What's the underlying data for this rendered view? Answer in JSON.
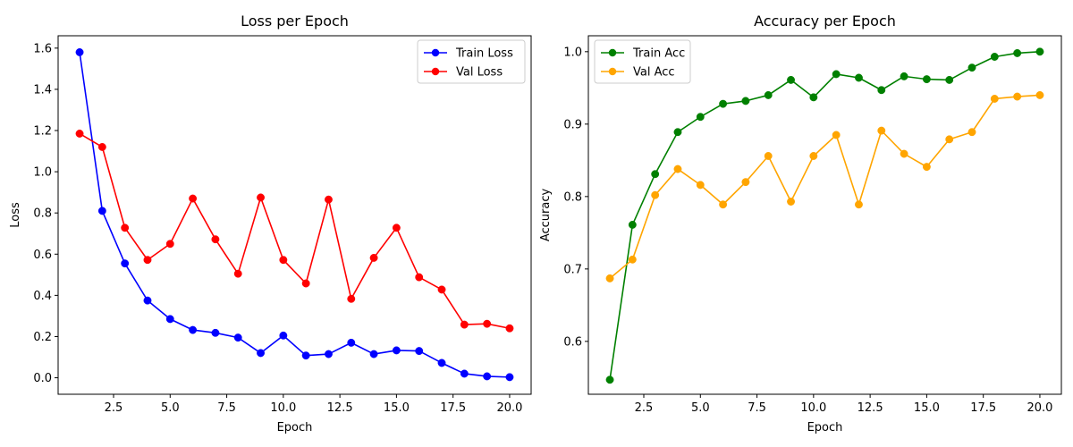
{
  "chart_data": [
    {
      "type": "line",
      "title": "Loss per Epoch",
      "xlabel": "Epoch",
      "ylabel": "Loss",
      "xlim": [
        0.05,
        20.95
      ],
      "ylim": [
        -0.08,
        1.66
      ],
      "xticks": [
        2.5,
        5.0,
        7.5,
        10.0,
        12.5,
        15.0,
        17.5,
        20.0
      ],
      "xtick_labels": [
        "2.5",
        "5.0",
        "7.5",
        "10.0",
        "12.5",
        "15.0",
        "17.5",
        "20.0"
      ],
      "yticks": [
        0.0,
        0.2,
        0.4,
        0.6,
        0.8,
        1.0,
        1.2,
        1.4,
        1.6
      ],
      "ytick_labels": [
        "0.0",
        "0.2",
        "0.4",
        "0.6",
        "0.8",
        "1.0",
        "1.2",
        "1.4",
        "1.6"
      ],
      "grid": false,
      "legend_position": "top-right",
      "x": [
        1,
        2,
        3,
        4,
        5,
        6,
        7,
        8,
        9,
        10,
        11,
        12,
        13,
        14,
        15,
        16,
        17,
        18,
        19,
        20
      ],
      "series": [
        {
          "name": "Train Loss",
          "color": "#0000ff",
          "values": [
            1.58,
            0.81,
            0.555,
            0.375,
            0.285,
            0.232,
            0.218,
            0.195,
            0.12,
            0.205,
            0.108,
            0.115,
            0.17,
            0.115,
            0.133,
            0.13,
            0.072,
            0.02,
            0.007,
            0.003
          ]
        },
        {
          "name": "Val Loss",
          "color": "#ff0000",
          "values": [
            1.185,
            1.12,
            0.728,
            0.572,
            0.65,
            0.87,
            0.672,
            0.505,
            0.875,
            0.572,
            0.458,
            0.865,
            0.383,
            0.582,
            0.728,
            0.488,
            0.428,
            0.258,
            0.262,
            0.24
          ]
        }
      ]
    },
    {
      "type": "line",
      "title": "Accuracy per Epoch",
      "xlabel": "Epoch",
      "ylabel": "Accuracy",
      "xlim": [
        0.05,
        20.95
      ],
      "ylim": [
        0.527,
        1.022
      ],
      "xticks": [
        2.5,
        5.0,
        7.5,
        10.0,
        12.5,
        15.0,
        17.5,
        20.0
      ],
      "xtick_labels": [
        "2.5",
        "5.0",
        "7.5",
        "10.0",
        "12.5",
        "15.0",
        "17.5",
        "20.0"
      ],
      "yticks": [
        0.6,
        0.7,
        0.8,
        0.9,
        1.0
      ],
      "ytick_labels": [
        "0.6",
        "0.7",
        "0.8",
        "0.9",
        "1.0"
      ],
      "grid": false,
      "legend_position": "top-left",
      "x": [
        1,
        2,
        3,
        4,
        5,
        6,
        7,
        8,
        9,
        10,
        11,
        12,
        13,
        14,
        15,
        16,
        17,
        18,
        19,
        20
      ],
      "series": [
        {
          "name": "Train Acc",
          "color": "#008000",
          "values": [
            0.547,
            0.761,
            0.831,
            0.889,
            0.91,
            0.928,
            0.932,
            0.94,
            0.961,
            0.937,
            0.969,
            0.964,
            0.947,
            0.966,
            0.962,
            0.961,
            0.978,
            0.993,
            0.998,
            1.0
          ]
        },
        {
          "name": "Val Acc",
          "color": "#ffa500",
          "values": [
            0.687,
            0.713,
            0.802,
            0.838,
            0.816,
            0.789,
            0.82,
            0.856,
            0.793,
            0.856,
            0.885,
            0.789,
            0.891,
            0.859,
            0.841,
            0.879,
            0.889,
            0.935,
            0.938,
            0.94
          ]
        }
      ]
    }
  ]
}
